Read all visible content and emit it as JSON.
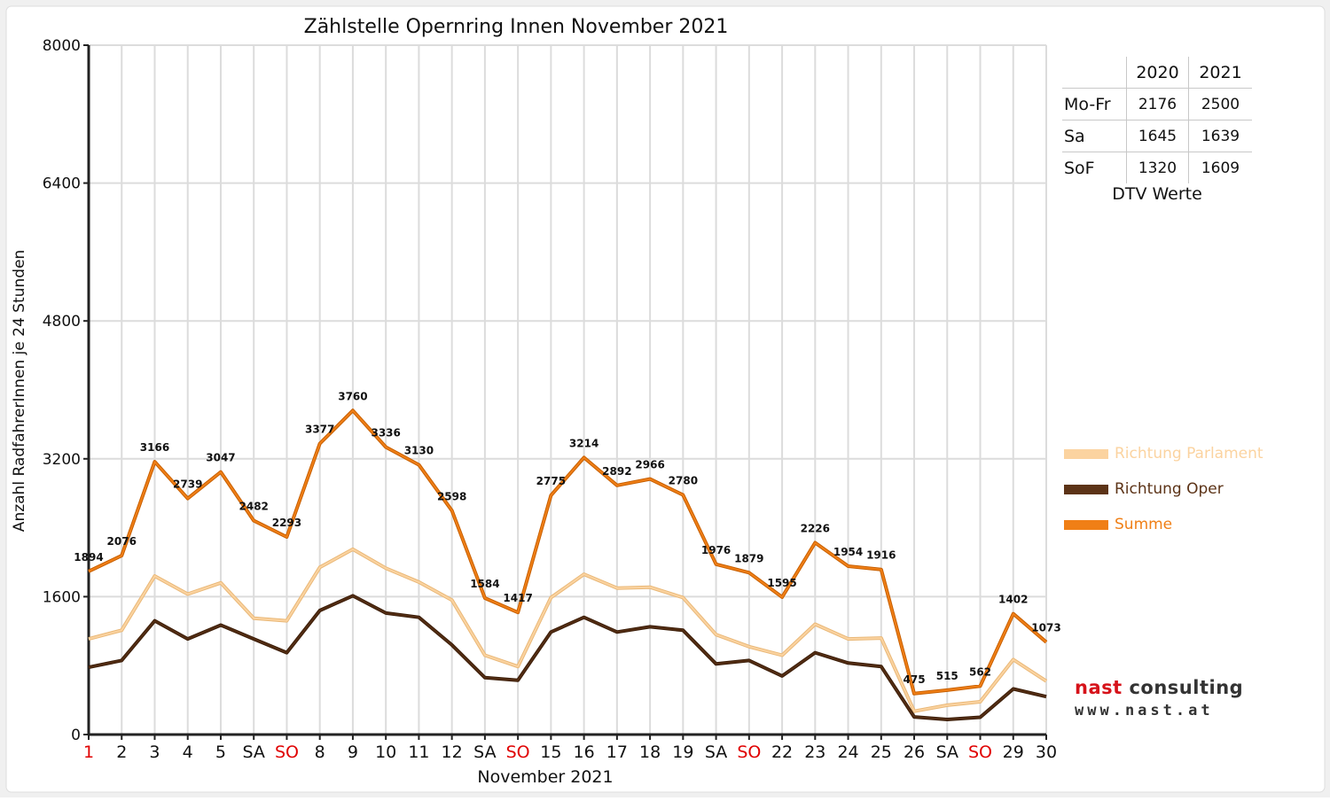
{
  "chart_data": {
    "type": "line",
    "title": "Zählstelle Opernring Innen November 2021",
    "xlabel": "November 2021",
    "ylabel": "Anzahl RadfahrerInnen je 24 Stunden",
    "ylim": [
      0,
      8000
    ],
    "yticks": [
      "0",
      "1600",
      "3200",
      "4800",
      "6400",
      "8000"
    ],
    "grid": true,
    "legend_position": "right",
    "categories": [
      "1",
      "2",
      "3",
      "4",
      "5",
      "SA",
      "SO",
      "8",
      "9",
      "10",
      "11",
      "12",
      "SA",
      "SO",
      "15",
      "16",
      "17",
      "18",
      "19",
      "SA",
      "SO",
      "22",
      "23",
      "24",
      "25",
      "26",
      "SA",
      "SO",
      "29",
      "30"
    ],
    "red_categories": [
      0,
      6,
      13,
      20,
      27
    ],
    "series": [
      {
        "name": "Richtung Parlament",
        "color": "#fbd3a0",
        "values": [
          1110,
          1210,
          1840,
          1630,
          1760,
          1350,
          1320,
          1940,
          2150,
          1930,
          1770,
          1560,
          920,
          790,
          1590,
          1860,
          1700,
          1710,
          1590,
          1160,
          1020,
          920,
          1280,
          1110,
          1120,
          270,
          340,
          380,
          870,
          620
        ]
      },
      {
        "name": "Richtung Oper",
        "color": "#5c3317",
        "values": [
          780,
          860,
          1320,
          1110,
          1270,
          1110,
          950,
          1440,
          1610,
          1410,
          1360,
          1040,
          660,
          630,
          1190,
          1360,
          1190,
          1250,
          1210,
          820,
          860,
          680,
          950,
          830,
          790,
          205,
          175,
          200,
          530,
          440
        ]
      },
      {
        "name": "Summe",
        "color": "#f07f16",
        "values": [
          1894,
          2076,
          3166,
          2739,
          3047,
          2482,
          2293,
          3377,
          3760,
          3336,
          3130,
          2598,
          1584,
          1417,
          2775,
          3214,
          2892,
          2966,
          2780,
          1976,
          1879,
          1595,
          2226,
          1954,
          1916,
          475,
          515,
          562,
          1402,
          1073
        ],
        "labels": [
          "1894",
          "2076",
          "3166",
          "2739",
          "3047",
          "2482",
          "2293",
          "3377",
          "3760",
          "3336",
          "3130",
          "2598",
          "1584",
          "1417",
          "2775",
          "3214",
          "2892",
          "2966",
          "2780",
          "1976",
          "1879",
          "1595",
          "2226",
          "1954",
          "1916",
          "475",
          "515",
          "562",
          "1402",
          "1073"
        ]
      }
    ]
  },
  "dtv_table": {
    "header": [
      "",
      "2020",
      "2021"
    ],
    "rows": [
      {
        "label": "Mo-Fr",
        "v2020": "2176",
        "v2021": "2500"
      },
      {
        "label": "Sa",
        "v2020": "1645",
        "v2021": "1639"
      },
      {
        "label": "SoF",
        "v2020": "1320",
        "v2021": "1609"
      }
    ],
    "caption": "DTV Werte"
  },
  "legend": [
    {
      "label": "Richtung Parlament",
      "color": "#fbd3a0"
    },
    {
      "label": "Richtung Oper",
      "color": "#5c3317"
    },
    {
      "label": "Summe",
      "color": "#f07f16"
    }
  ],
  "logo": {
    "line1_a": "nast",
    "line1_b": "consulting",
    "line2": "www.nast.at",
    "color_a": "#d6121a",
    "color_b": "#333333"
  }
}
